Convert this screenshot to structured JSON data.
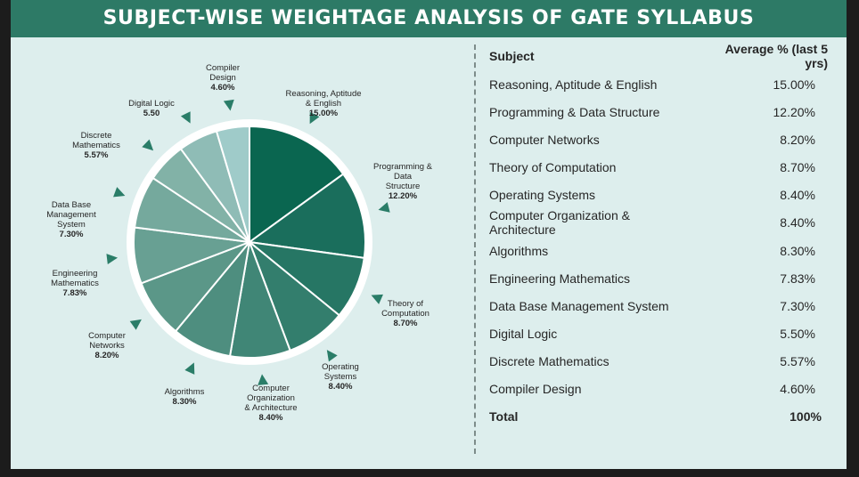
{
  "page": {
    "title": "SUBJECT-WISE WEIGHTAGE ANALYSIS OF GATE SYLLABUS",
    "colors": {
      "header_bg": "#2d7a66",
      "panel_bg": "#ddeeed",
      "arrow": "#2a7d68"
    }
  },
  "table": {
    "header_subject": "Subject",
    "header_value": "Average % (last 5 yrs)",
    "rows": [
      {
        "subject": "Reasoning, Aptitude & English",
        "value": "15.00%"
      },
      {
        "subject": "Programming & Data Structure",
        "value": "12.20%"
      },
      {
        "subject": "Computer Networks",
        "value": "8.20%"
      },
      {
        "subject": "Theory of Computation",
        "value": "8.70%"
      },
      {
        "subject": "Operating Systems",
        "value": "8.40%"
      },
      {
        "subject": "Computer Organization & Architecture",
        "value": "8.40%"
      },
      {
        "subject": "Algorithms",
        "value": "8.30%"
      },
      {
        "subject": "Engineering Mathematics",
        "value": "7.83%"
      },
      {
        "subject": "Data Base Management System",
        "value": "7.30%"
      },
      {
        "subject": "Digital Logic",
        "value": "5.50%"
      },
      {
        "subject": "Discrete Mathematics",
        "value": "5.57%"
      },
      {
        "subject": "Compiler Design",
        "value": "4.60%"
      }
    ],
    "total_label": "Total",
    "total_value": "100%"
  },
  "chart_data": {
    "type": "pie",
    "title": "SUBJECT-WISE WEIGHTAGE ANALYSIS OF GATE SYLLABUS",
    "slices": [
      {
        "label_lines": [
          "Reasoning, Aptitude",
          "& English"
        ],
        "value_label": "15.00%",
        "value": 15.0,
        "color": "#0a6650"
      },
      {
        "label_lines": [
          "Programming &",
          "Data",
          "Structure"
        ],
        "value_label": "12.20%",
        "value": 12.2,
        "color": "#1a6e5c"
      },
      {
        "label_lines": [
          "Theory of",
          "Computation"
        ],
        "value_label": "8.70%",
        "value": 8.7,
        "color": "#267664"
      },
      {
        "label_lines": [
          "Operating",
          "Systems"
        ],
        "value_label": "8.40%",
        "value": 8.4,
        "color": "#337e6d"
      },
      {
        "label_lines": [
          "Computer",
          "Organization",
          "& Architecture"
        ],
        "value_label": "8.40%",
        "value": 8.4,
        "color": "#408676"
      },
      {
        "label_lines": [
          "Algorithms"
        ],
        "value_label": "8.30%",
        "value": 8.3,
        "color": "#4e8e7f"
      },
      {
        "label_lines": [
          "Computer",
          "Networks"
        ],
        "value_label": "8.20%",
        "value": 8.2,
        "color": "#5b9788"
      },
      {
        "label_lines": [
          "Engineering",
          "Mathematics"
        ],
        "value_label": "7.83%",
        "value": 7.83,
        "color": "#68a093"
      },
      {
        "label_lines": [
          "Data Base",
          "Management",
          "System"
        ],
        "value_label": "7.30%",
        "value": 7.3,
        "color": "#75a99d"
      },
      {
        "label_lines": [
          "Discrete",
          "Mathematics"
        ],
        "value_label": "5.57%",
        "value": 5.57,
        "color": "#82b2a7"
      },
      {
        "label_lines": [
          "Digital Logic"
        ],
        "value_label": "5.50",
        "value": 5.5,
        "color": "#8fbcb6"
      },
      {
        "label_lines": [
          "Compiler",
          "Design"
        ],
        "value_label": "4.60%",
        "value": 4.6,
        "color": "#9fcbc9"
      }
    ]
  }
}
